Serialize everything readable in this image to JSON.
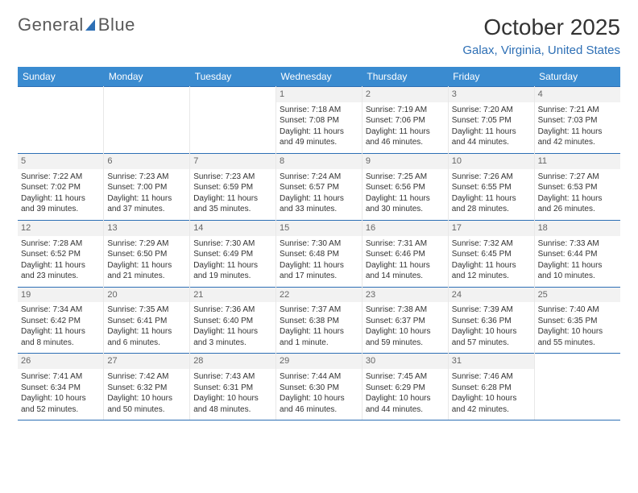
{
  "brand": {
    "word1": "General",
    "word2": "Blue"
  },
  "title": "October 2025",
  "location": "Galax, Virginia, United States",
  "colors": {
    "header_bg": "#3a8bd0",
    "accent": "#2d6fb5",
    "daynum_bg": "#f2f2f2",
    "text": "#333333"
  },
  "typography": {
    "title_fontsize": 28,
    "body_fontsize": 10
  },
  "calendar": {
    "type": "table",
    "columns": [
      "Sunday",
      "Monday",
      "Tuesday",
      "Wednesday",
      "Thursday",
      "Friday",
      "Saturday"
    ],
    "first_day_column_index": 3,
    "days": [
      {
        "n": 1,
        "sunrise": "7:18 AM",
        "sunset": "7:08 PM",
        "daylight": "11 hours and 49 minutes."
      },
      {
        "n": 2,
        "sunrise": "7:19 AM",
        "sunset": "7:06 PM",
        "daylight": "11 hours and 46 minutes."
      },
      {
        "n": 3,
        "sunrise": "7:20 AM",
        "sunset": "7:05 PM",
        "daylight": "11 hours and 44 minutes."
      },
      {
        "n": 4,
        "sunrise": "7:21 AM",
        "sunset": "7:03 PM",
        "daylight": "11 hours and 42 minutes."
      },
      {
        "n": 5,
        "sunrise": "7:22 AM",
        "sunset": "7:02 PM",
        "daylight": "11 hours and 39 minutes."
      },
      {
        "n": 6,
        "sunrise": "7:23 AM",
        "sunset": "7:00 PM",
        "daylight": "11 hours and 37 minutes."
      },
      {
        "n": 7,
        "sunrise": "7:23 AM",
        "sunset": "6:59 PM",
        "daylight": "11 hours and 35 minutes."
      },
      {
        "n": 8,
        "sunrise": "7:24 AM",
        "sunset": "6:57 PM",
        "daylight": "11 hours and 33 minutes."
      },
      {
        "n": 9,
        "sunrise": "7:25 AM",
        "sunset": "6:56 PM",
        "daylight": "11 hours and 30 minutes."
      },
      {
        "n": 10,
        "sunrise": "7:26 AM",
        "sunset": "6:55 PM",
        "daylight": "11 hours and 28 minutes."
      },
      {
        "n": 11,
        "sunrise": "7:27 AM",
        "sunset": "6:53 PM",
        "daylight": "11 hours and 26 minutes."
      },
      {
        "n": 12,
        "sunrise": "7:28 AM",
        "sunset": "6:52 PM",
        "daylight": "11 hours and 23 minutes."
      },
      {
        "n": 13,
        "sunrise": "7:29 AM",
        "sunset": "6:50 PM",
        "daylight": "11 hours and 21 minutes."
      },
      {
        "n": 14,
        "sunrise": "7:30 AM",
        "sunset": "6:49 PM",
        "daylight": "11 hours and 19 minutes."
      },
      {
        "n": 15,
        "sunrise": "7:30 AM",
        "sunset": "6:48 PM",
        "daylight": "11 hours and 17 minutes."
      },
      {
        "n": 16,
        "sunrise": "7:31 AM",
        "sunset": "6:46 PM",
        "daylight": "11 hours and 14 minutes."
      },
      {
        "n": 17,
        "sunrise": "7:32 AM",
        "sunset": "6:45 PM",
        "daylight": "11 hours and 12 minutes."
      },
      {
        "n": 18,
        "sunrise": "7:33 AM",
        "sunset": "6:44 PM",
        "daylight": "11 hours and 10 minutes."
      },
      {
        "n": 19,
        "sunrise": "7:34 AM",
        "sunset": "6:42 PM",
        "daylight": "11 hours and 8 minutes."
      },
      {
        "n": 20,
        "sunrise": "7:35 AM",
        "sunset": "6:41 PM",
        "daylight": "11 hours and 6 minutes."
      },
      {
        "n": 21,
        "sunrise": "7:36 AM",
        "sunset": "6:40 PM",
        "daylight": "11 hours and 3 minutes."
      },
      {
        "n": 22,
        "sunrise": "7:37 AM",
        "sunset": "6:38 PM",
        "daylight": "11 hours and 1 minute."
      },
      {
        "n": 23,
        "sunrise": "7:38 AM",
        "sunset": "6:37 PM",
        "daylight": "10 hours and 59 minutes."
      },
      {
        "n": 24,
        "sunrise": "7:39 AM",
        "sunset": "6:36 PM",
        "daylight": "10 hours and 57 minutes."
      },
      {
        "n": 25,
        "sunrise": "7:40 AM",
        "sunset": "6:35 PM",
        "daylight": "10 hours and 55 minutes."
      },
      {
        "n": 26,
        "sunrise": "7:41 AM",
        "sunset": "6:34 PM",
        "daylight": "10 hours and 52 minutes."
      },
      {
        "n": 27,
        "sunrise": "7:42 AM",
        "sunset": "6:32 PM",
        "daylight": "10 hours and 50 minutes."
      },
      {
        "n": 28,
        "sunrise": "7:43 AM",
        "sunset": "6:31 PM",
        "daylight": "10 hours and 48 minutes."
      },
      {
        "n": 29,
        "sunrise": "7:44 AM",
        "sunset": "6:30 PM",
        "daylight": "10 hours and 46 minutes."
      },
      {
        "n": 30,
        "sunrise": "7:45 AM",
        "sunset": "6:29 PM",
        "daylight": "10 hours and 44 minutes."
      },
      {
        "n": 31,
        "sunrise": "7:46 AM",
        "sunset": "6:28 PM",
        "daylight": "10 hours and 42 minutes."
      }
    ],
    "labels": {
      "sunrise": "Sunrise:",
      "sunset": "Sunset:",
      "daylight": "Daylight:"
    }
  }
}
